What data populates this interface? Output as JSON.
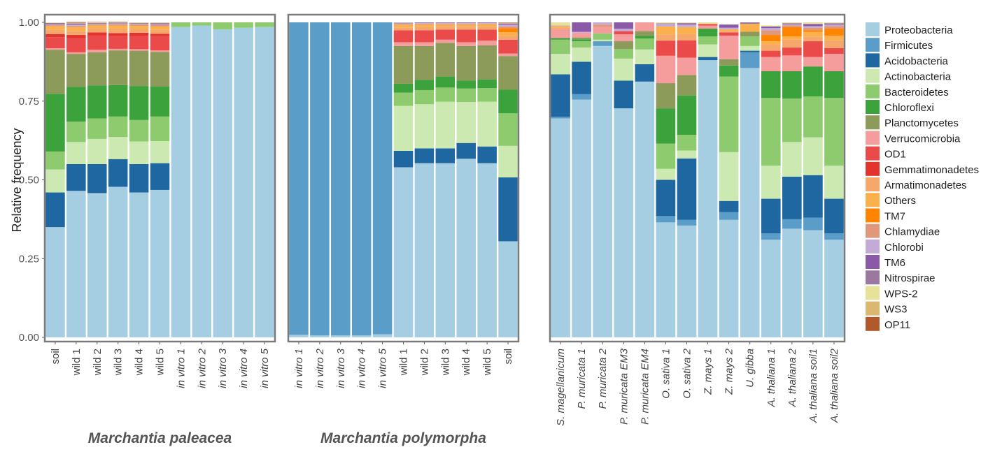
{
  "chart_data": {
    "type": "bar",
    "stacked": true,
    "ylabel": "Relative frequency",
    "ylim": [
      0,
      1
    ],
    "yticks": [
      "0.00",
      "0.25",
      "0.50",
      "0.75",
      "1.00"
    ],
    "legend_position": "right",
    "phyla": [
      "Proteobacteria",
      "Firmicutes",
      "Acidobacteria",
      "Actinobacteria",
      "Bacteroidetes",
      "Chloroflexi",
      "Planctomycetes",
      "Verrucomicrobia",
      "OD1",
      "Gemmatimonadetes",
      "Armatimonadetes",
      "Others",
      "TM7",
      "Chlamydiae",
      "Chlorobi",
      "TM6",
      "Nitrospirae",
      "WPS-2",
      "WS3",
      "OP11"
    ],
    "colors": [
      "#a6cee3",
      "#5b9dc9",
      "#1f67a0",
      "#cbe9b0",
      "#8ecb6e",
      "#3ca23c",
      "#8c9a5a",
      "#f59c9c",
      "#ea4a4a",
      "#e2342c",
      "#f6a86c",
      "#fbb04c",
      "#ff8400",
      "#e0977a",
      "#c4abd6",
      "#8a5aa8",
      "#9a78a0",
      "#e6e29a",
      "#dbb870",
      "#b05a2c"
    ],
    "panels": [
      {
        "title": "Marchantia paleacea",
        "bars": [
          {
            "label": "soil",
            "italic": false,
            "values": [
              0.35,
              0.0,
              0.11,
              0.073,
              0.057,
              0.183,
              0.14,
              0.005,
              0.035,
              0.01,
              0.013,
              0.012,
              0.0,
              0.003,
              0.002,
              0.001,
              0.004,
              0.002,
              0.0,
              0.0
            ]
          },
          {
            "label": "wild 1",
            "italic": false,
            "values": [
              0.465,
              0.0,
              0.085,
              0.07,
              0.065,
              0.11,
              0.105,
              0.005,
              0.045,
              0.01,
              0.013,
              0.012,
              0.0,
              0.004,
              0.003,
              0.002,
              0.003,
              0.001,
              0.001,
              0.002
            ]
          },
          {
            "label": "wild 2",
            "italic": false,
            "values": [
              0.458,
              0.0,
              0.092,
              0.08,
              0.065,
              0.105,
              0.105,
              0.008,
              0.045,
              0.01,
              0.013,
              0.009,
              0.0,
              0.003,
              0.002,
              0.001,
              0.002,
              0.001,
              0.001,
              0.001
            ]
          },
          {
            "label": "wild 3",
            "italic": false,
            "values": [
              0.478,
              0.0,
              0.088,
              0.07,
              0.065,
              0.1,
              0.11,
              0.005,
              0.04,
              0.01,
              0.013,
              0.011,
              0.0,
              0.004,
              0.002,
              0.001,
              0.002,
              0.001,
              0.001,
              0.001
            ]
          },
          {
            "label": "wild 4",
            "italic": false,
            "values": [
              0.46,
              0.0,
              0.09,
              0.072,
              0.068,
              0.108,
              0.112,
              0.005,
              0.042,
              0.01,
              0.013,
              0.009,
              0.0,
              0.004,
              0.002,
              0.001,
              0.002,
              0.001,
              0.001,
              0.0
            ]
          },
          {
            "label": "wild 5",
            "italic": false,
            "values": [
              0.468,
              0.0,
              0.085,
              0.07,
              0.078,
              0.095,
              0.11,
              0.005,
              0.045,
              0.008,
              0.012,
              0.011,
              0.0,
              0.005,
              0.002,
              0.002,
              0.002,
              0.001,
              0.001,
              0.0
            ]
          },
          {
            "label": "in vitro 1",
            "italic": true,
            "values": [
              0.985,
              0.0,
              0.0,
              0.0,
              0.015,
              0,
              0,
              0,
              0,
              0,
              0,
              0,
              0,
              0,
              0,
              0,
              0,
              0,
              0,
              0
            ]
          },
          {
            "label": "in vitro 2",
            "italic": true,
            "values": [
              0.99,
              0.0,
              0.0,
              0.0,
              0.01,
              0,
              0,
              0,
              0,
              0,
              0,
              0,
              0,
              0,
              0,
              0,
              0,
              0,
              0,
              0
            ]
          },
          {
            "label": "in vitro 3",
            "italic": true,
            "values": [
              0.978,
              0.0,
              0.0,
              0.0,
              0.022,
              0,
              0,
              0,
              0,
              0,
              0,
              0,
              0,
              0,
              0,
              0,
              0,
              0,
              0,
              0
            ]
          },
          {
            "label": "in vitro 4",
            "italic": true,
            "values": [
              0.983,
              0.0,
              0.0,
              0.0,
              0.017,
              0,
              0,
              0,
              0,
              0,
              0,
              0,
              0,
              0,
              0,
              0,
              0,
              0,
              0,
              0
            ]
          },
          {
            "label": "in vitro 5",
            "italic": true,
            "values": [
              0.985,
              0.0,
              0.0,
              0.0,
              0.015,
              0,
              0,
              0,
              0,
              0,
              0,
              0,
              0,
              0,
              0,
              0,
              0,
              0,
              0,
              0
            ]
          }
        ]
      },
      {
        "title": "Marchantia polymorpha",
        "bars": [
          {
            "label": "in vitro 1",
            "italic": true,
            "values": [
              0.008,
              0.992,
              0,
              0,
              0,
              0,
              0,
              0,
              0,
              0,
              0,
              0,
              0,
              0,
              0,
              0,
              0,
              0,
              0,
              0
            ]
          },
          {
            "label": "in vitro 2",
            "italic": true,
            "values": [
              0.006,
              0.994,
              0,
              0,
              0,
              0,
              0,
              0,
              0,
              0,
              0,
              0,
              0,
              0,
              0,
              0,
              0,
              0,
              0,
              0
            ]
          },
          {
            "label": "in vitro 3",
            "italic": true,
            "values": [
              0.006,
              0.994,
              0,
              0,
              0,
              0,
              0,
              0,
              0,
              0,
              0,
              0,
              0,
              0,
              0,
              0,
              0,
              0,
              0,
              0
            ]
          },
          {
            "label": "in vitro 4",
            "italic": true,
            "values": [
              0.006,
              0.994,
              0,
              0,
              0,
              0,
              0,
              0,
              0,
              0,
              0,
              0,
              0,
              0,
              0,
              0,
              0,
              0,
              0,
              0
            ]
          },
          {
            "label": "in vitro 5",
            "italic": true,
            "values": [
              0.01,
              0.99,
              0,
              0,
              0,
              0,
              0,
              0,
              0,
              0,
              0,
              0,
              0,
              0,
              0,
              0,
              0,
              0,
              0,
              0
            ]
          },
          {
            "label": "wild 1",
            "italic": false,
            "values": [
              0.54,
              0.0,
              0.052,
              0.143,
              0.042,
              0.028,
              0.12,
              0.012,
              0.038,
              0.0,
              0.009,
              0.008,
              0.0,
              0.003,
              0.002,
              0.001,
              0.001,
              0.001,
              0.0,
              0.0
            ]
          },
          {
            "label": "wild 2",
            "italic": false,
            "values": [
              0.553,
              0.0,
              0.047,
              0.14,
              0.045,
              0.032,
              0.108,
              0.012,
              0.038,
              0.0,
              0.01,
              0.008,
              0.0,
              0.003,
              0.002,
              0.001,
              0.001,
              0.0,
              0.0,
              0.0
            ]
          },
          {
            "label": "wild 3",
            "italic": false,
            "values": [
              0.553,
              0.0,
              0.047,
              0.148,
              0.045,
              0.035,
              0.107,
              0.01,
              0.032,
              0.0,
              0.011,
              0.005,
              0.0,
              0.003,
              0.002,
              0.001,
              0.001,
              0.0,
              0.0,
              0.0
            ]
          },
          {
            "label": "wild 4",
            "italic": false,
            "values": [
              0.567,
              0.0,
              0.05,
              0.13,
              0.043,
              0.025,
              0.11,
              0.012,
              0.04,
              0.0,
              0.01,
              0.006,
              0.0,
              0.003,
              0.002,
              0.001,
              0.001,
              0.0,
              0.0,
              0.0
            ]
          },
          {
            "label": "wild 5",
            "italic": false,
            "values": [
              0.553,
              0.0,
              0.053,
              0.142,
              0.043,
              0.028,
              0.108,
              0.015,
              0.035,
              0.0,
              0.01,
              0.007,
              0.0,
              0.002,
              0.002,
              0.001,
              0.001,
              0.0,
              0.0,
              0.0
            ]
          },
          {
            "label": "soil",
            "italic": false,
            "values": [
              0.305,
              0.0,
              0.203,
              0.1,
              0.103,
              0.075,
              0.107,
              0.008,
              0.044,
              0.0,
              0.012,
              0.012,
              0.012,
              0.006,
              0.005,
              0.002,
              0.003,
              0.001,
              0.001,
              0.001
            ]
          }
        ]
      },
      {
        "title": "",
        "bars": [
          {
            "label": "S. magellanicum",
            "italic": true,
            "values": [
              0.695,
              0.005,
              0.135,
              0.065,
              0.045,
              0.005,
              0.0,
              0.028,
              0.0,
              0.0,
              0.005,
              0.005,
              0.0,
              0.0,
              0.002,
              0.0,
              0.0,
              0.01,
              0.0,
              0.0
            ]
          },
          {
            "label": "P. muricata 1",
            "italic": true,
            "values": [
              0.755,
              0.017,
              0.103,
              0.045,
              0.02,
              0.006,
              0.006,
              0.015,
              0.0,
              0.0,
              0.0,
              0.0,
              0.0,
              0.0,
              0.003,
              0.03,
              0.0,
              0.0,
              0.0,
              0.0
            ]
          },
          {
            "label": "P. muricata 2",
            "italic": true,
            "values": [
              0.925,
              0.015,
              0.0,
              0.005,
              0.02,
              0.0,
              0.0,
              0.02,
              0.0,
              0.0,
              0.0,
              0.0,
              0.0,
              0.008,
              0.007,
              0.0,
              0.0,
              0.0,
              0.0,
              0.0
            ]
          },
          {
            "label": "P. muricata EM3",
            "italic": true,
            "values": [
              0.727,
              0.0,
              0.088,
              0.07,
              0.03,
              0.0,
              0.025,
              0.022,
              0.01,
              0.0,
              0.0,
              0.0,
              0.0,
              0.0,
              0.008,
              0.02,
              0.0,
              0.0,
              0.0,
              0.0
            ]
          },
          {
            "label": "P. muricata EM4",
            "italic": true,
            "values": [
              0.812,
              0.0,
              0.055,
              0.047,
              0.035,
              0.008,
              0.015,
              0.028,
              0.0,
              0.0,
              0.0,
              0.0,
              0.0,
              0.0,
              0.0,
              0.0,
              0.0,
              0.0,
              0.0,
              0.0
            ]
          },
          {
            "label": "O. sativa 1",
            "italic": true,
            "values": [
              0.365,
              0.02,
              0.115,
              0.035,
              0.08,
              0.112,
              0.08,
              0.087,
              0.048,
              0.0,
              0.02,
              0.025,
              0.0,
              0.0,
              0.008,
              0.0,
              0.002,
              0.003,
              0.0,
              0.0
            ]
          },
          {
            "label": "O. sativa 2",
            "italic": true,
            "values": [
              0.355,
              0.018,
              0.195,
              0.025,
              0.05,
              0.125,
              0.065,
              0.055,
              0.055,
              0.0,
              0.02,
              0.022,
              0.0,
              0.0,
              0.008,
              0.003,
              0.002,
              0.002,
              0.0,
              0.0
            ]
          },
          {
            "label": "Z. mays 1",
            "italic": true,
            "values": [
              0.88,
              0.0,
              0.01,
              0.04,
              0.025,
              0.025,
              0.0,
              0.01,
              0.005,
              0.0,
              0.0,
              0.0,
              0.0,
              0.0,
              0.0,
              0.0,
              0.0,
              0.005,
              0.0,
              0.0
            ]
          },
          {
            "label": "Z. mays 2",
            "italic": true,
            "values": [
              0.373,
              0.025,
              0.035,
              0.155,
              0.24,
              0.035,
              0.02,
              0.075,
              0.01,
              0.0,
              0.005,
              0.005,
              0.0,
              0.0,
              0.005,
              0.01,
              0.0,
              0.0,
              0.0,
              0.0
            ]
          },
          {
            "label": "U. gibba",
            "italic": true,
            "values": [
              0.855,
              0.05,
              0.005,
              0.015,
              0.03,
              0.0,
              0.015,
              0.0,
              0.0,
              0.0,
              0.0,
              0.025,
              0.0,
              0.0,
              0.0,
              0.0,
              0.005,
              0.0,
              0.0,
              0.0
            ]
          },
          {
            "label": "A. thaliana 1",
            "italic": true,
            "values": [
              0.31,
              0.02,
              0.11,
              0.105,
              0.215,
              0.085,
              0.0,
              0.045,
              0.02,
              0.0,
              0.02,
              0.01,
              0.02,
              0.015,
              0.007,
              0.005,
              0.0,
              0.003,
              0.0,
              0.0
            ]
          },
          {
            "label": "A. thaliana 2",
            "italic": true,
            "values": [
              0.345,
              0.03,
              0.135,
              0.11,
              0.138,
              0.087,
              0.0,
              0.05,
              0.025,
              0.0,
              0.025,
              0.01,
              0.03,
              0.005,
              0.004,
              0.003,
              0.0,
              0.003,
              0.0,
              0.0
            ]
          },
          {
            "label": "A. thaliana soil1",
            "italic": true,
            "values": [
              0.34,
              0.04,
              0.135,
              0.12,
              0.13,
              0.095,
              0.0,
              0.03,
              0.05,
              0.0,
              0.015,
              0.015,
              0.005,
              0.008,
              0.005,
              0.007,
              0.0,
              0.005,
              0.0,
              0.0
            ]
          },
          {
            "label": "A. thaliana soil2",
            "italic": true,
            "values": [
              0.31,
              0.02,
              0.11,
              0.105,
              0.215,
              0.085,
              0.0,
              0.055,
              0.018,
              0.0,
              0.025,
              0.015,
              0.022,
              0.008,
              0.005,
              0.004,
              0.0,
              0.003,
              0.0,
              0.0
            ]
          }
        ]
      }
    ]
  }
}
